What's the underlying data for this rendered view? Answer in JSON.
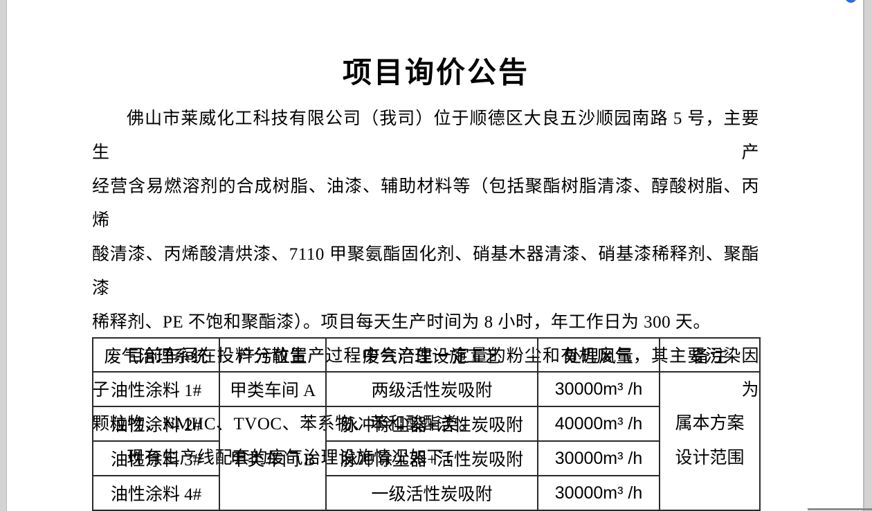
{
  "colors": {
    "app-background": "#d3d3d3",
    "page-background": "#ffffff",
    "page-border": "#b9b9b9",
    "text": "#000000",
    "table-border": "#2a2a2a",
    "scroll-top-button": "#2e6be5",
    "scrollbar-edge": "#8a8a8a"
  },
  "doc": {
    "title": "项目询价公告",
    "paragraphs": [
      {
        "lines": [
          "佛山市莱威化工科技有限公司（我司）位于顺德区大良五沙顺园南路 5 号，主要生产",
          "经营含易燃溶剂的合成树脂、油漆、辅助材料等（包括聚酯树脂清漆、醇酸树脂、丙烯",
          "酸清漆、丙烯酸清烘漆、7110 甲聚氨酯固化剂、硝基木器清漆、硝基漆稀释剂、聚酯漆",
          "稀释剂、PE 不饱和聚酯漆）。项目每天生产时间为 8 小时，年工作日为 300 天。"
        ]
      },
      {
        "lines": [
          "目前车间在投料分散生产过程中会产生一定量的粉尘和有机废气，其主要污染因子为",
          "颗粒物、NMHC、TVOC、苯系物、苯和酸酯类。"
        ]
      },
      {
        "lines": [
          "现有生产线配套的废气治理设施情况如下："
        ]
      }
    ],
    "table": {
      "headers": [
        "废气治理系统",
        "产污位置",
        "废气治理设施工艺",
        "处理风量",
        "备注"
      ],
      "rows": [
        {
          "system": "油性涂料 1#",
          "location": "甲类车间 A",
          "process": "两级活性炭吸附",
          "airflow": "30000m³ /h"
        },
        {
          "system": "油性涂料 2#",
          "location": "甲类车间 B",
          "process": "脉冲除尘器+活性炭吸附",
          "airflow": "40000m³ /h"
        },
        {
          "system": "油性涂料 3#",
          "process": "脉冲除尘器+活性炭吸附",
          "airflow": "30000m³ /h"
        },
        {
          "system": "油性涂料 4#",
          "process": "一级活性炭吸附",
          "airflow": "30000m³ /h"
        }
      ],
      "remark_lines": [
        "属本方案",
        "设计范围"
      ]
    }
  }
}
